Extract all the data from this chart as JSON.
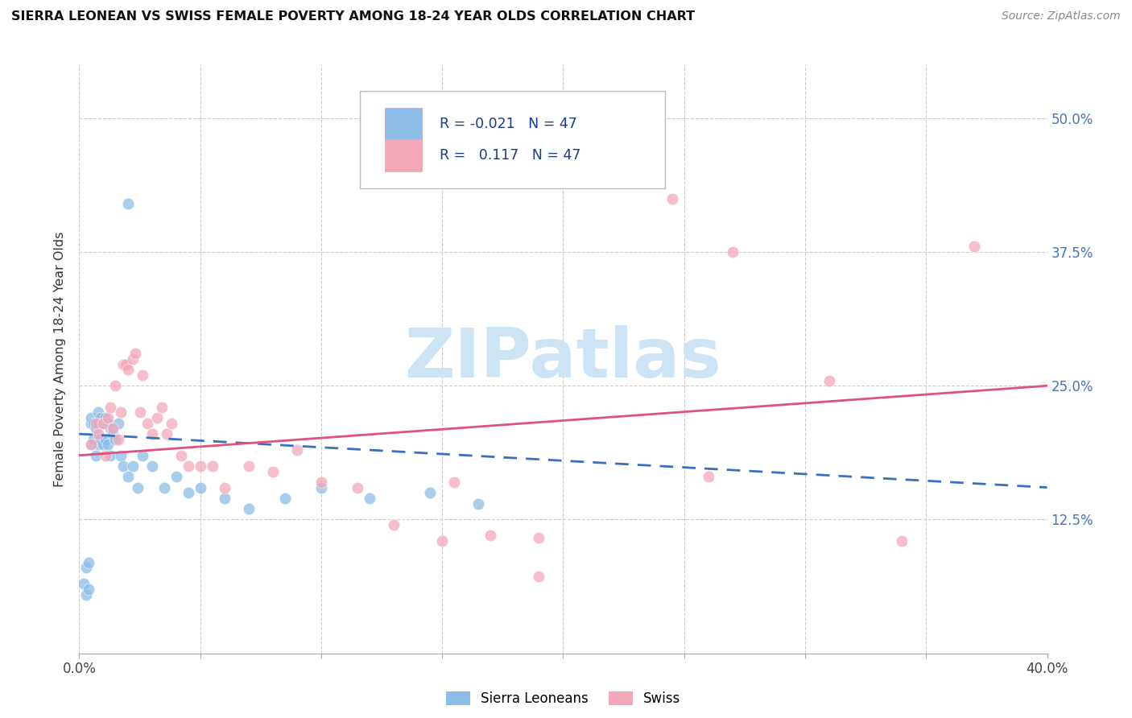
{
  "title": "SIERRA LEONEAN VS SWISS FEMALE POVERTY AMONG 18-24 YEAR OLDS CORRELATION CHART",
  "source": "Source: ZipAtlas.com",
  "ylabel": "Female Poverty Among 18-24 Year Olds",
  "xlim": [
    0.0,
    0.4
  ],
  "ylim": [
    0.0,
    0.55
  ],
  "xticks": [
    0.0,
    0.05,
    0.1,
    0.15,
    0.2,
    0.25,
    0.3,
    0.35,
    0.4
  ],
  "ytick_vals": [
    0.0,
    0.125,
    0.25,
    0.375,
    0.5
  ],
  "ytick_right_labels": [
    "",
    "12.5%",
    "25.0%",
    "37.5%",
    "50.0%"
  ],
  "xtick_labels": [
    "0.0%",
    "",
    "",
    "",
    "",
    "",
    "",
    "",
    "40.0%"
  ],
  "sl_color": "#8bbde8",
  "swiss_color": "#f4a7b9",
  "sl_line_color": "#3a6fc4",
  "swiss_line_color": "#e05080",
  "watermark": "ZIPatlas",
  "watermark_color": "#cce4f4",
  "sl_line_start_y": 0.205,
  "sl_line_end_y": 0.155,
  "swiss_line_start_y": 0.185,
  "swiss_line_end_y": 0.25,
  "sl_x": [
    0.002,
    0.003,
    0.003,
    0.004,
    0.004,
    0.005,
    0.005,
    0.005,
    0.006,
    0.006,
    0.007,
    0.007,
    0.008,
    0.008,
    0.008,
    0.009,
    0.009,
    0.01,
    0.01,
    0.011,
    0.011,
    0.012,
    0.012,
    0.013,
    0.013,
    0.014,
    0.015,
    0.016,
    0.017,
    0.018,
    0.02,
    0.022,
    0.024,
    0.026,
    0.03,
    0.035,
    0.04,
    0.045,
    0.05,
    0.06,
    0.07,
    0.085,
    0.1,
    0.12,
    0.145,
    0.165,
    0.02
  ],
  "sl_y": [
    0.065,
    0.08,
    0.055,
    0.06,
    0.085,
    0.195,
    0.215,
    0.22,
    0.2,
    0.215,
    0.185,
    0.21,
    0.195,
    0.215,
    0.225,
    0.2,
    0.22,
    0.195,
    0.215,
    0.2,
    0.22,
    0.195,
    0.215,
    0.185,
    0.21,
    0.205,
    0.2,
    0.215,
    0.185,
    0.175,
    0.165,
    0.175,
    0.155,
    0.185,
    0.175,
    0.155,
    0.165,
    0.15,
    0.155,
    0.145,
    0.135,
    0.145,
    0.155,
    0.145,
    0.15,
    0.14,
    0.42
  ],
  "swiss_x": [
    0.005,
    0.007,
    0.008,
    0.01,
    0.011,
    0.012,
    0.013,
    0.014,
    0.015,
    0.016,
    0.017,
    0.018,
    0.019,
    0.02,
    0.022,
    0.023,
    0.025,
    0.026,
    0.028,
    0.03,
    0.032,
    0.034,
    0.036,
    0.038,
    0.042,
    0.045,
    0.05,
    0.055,
    0.06,
    0.07,
    0.08,
    0.09,
    0.1,
    0.115,
    0.13,
    0.15,
    0.17,
    0.19,
    0.22,
    0.245,
    0.27,
    0.31,
    0.34,
    0.37,
    0.19,
    0.155,
    0.26
  ],
  "swiss_y": [
    0.195,
    0.215,
    0.205,
    0.215,
    0.185,
    0.22,
    0.23,
    0.21,
    0.25,
    0.2,
    0.225,
    0.27,
    0.27,
    0.265,
    0.275,
    0.28,
    0.225,
    0.26,
    0.215,
    0.205,
    0.22,
    0.23,
    0.205,
    0.215,
    0.185,
    0.175,
    0.175,
    0.175,
    0.155,
    0.175,
    0.17,
    0.19,
    0.16,
    0.155,
    0.12,
    0.105,
    0.11,
    0.108,
    0.445,
    0.425,
    0.375,
    0.255,
    0.105,
    0.38,
    0.072,
    0.16,
    0.165
  ]
}
